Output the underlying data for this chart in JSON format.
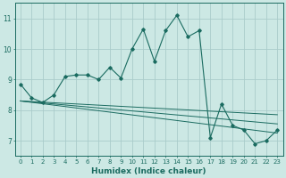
{
  "title": "",
  "xlabel": "Humidex (Indice chaleur)",
  "xlim": [
    -0.5,
    23.5
  ],
  "ylim": [
    6.5,
    11.5
  ],
  "yticks": [
    7,
    8,
    9,
    10,
    11
  ],
  "xticks": [
    0,
    1,
    2,
    3,
    4,
    5,
    6,
    7,
    8,
    9,
    10,
    11,
    12,
    13,
    14,
    15,
    16,
    17,
    18,
    19,
    20,
    21,
    22,
    23
  ],
  "bg_color": "#cce8e4",
  "grid_color": "#aaccca",
  "line_color": "#1a6b60",
  "main_series_x": [
    0,
    1,
    2,
    3,
    4,
    5,
    6,
    7,
    8,
    9,
    10,
    11,
    12,
    13,
    14,
    15,
    16,
    17,
    18,
    19,
    20,
    21,
    22,
    23
  ],
  "main_series_y": [
    8.85,
    8.4,
    8.25,
    8.5,
    9.1,
    9.15,
    9.15,
    9.0,
    9.4,
    9.05,
    10.0,
    10.65,
    9.6,
    10.6,
    11.1,
    10.4,
    10.6,
    7.1,
    8.2,
    7.5,
    7.35,
    6.9,
    7.0,
    7.35
  ],
  "trend1_x": [
    0,
    23
  ],
  "trend1_y": [
    8.3,
    7.25
  ],
  "trend2_x": [
    0,
    23
  ],
  "trend2_y": [
    8.3,
    7.55
  ],
  "trend3_x": [
    0,
    23
  ],
  "trend3_y": [
    8.3,
    7.85
  ]
}
